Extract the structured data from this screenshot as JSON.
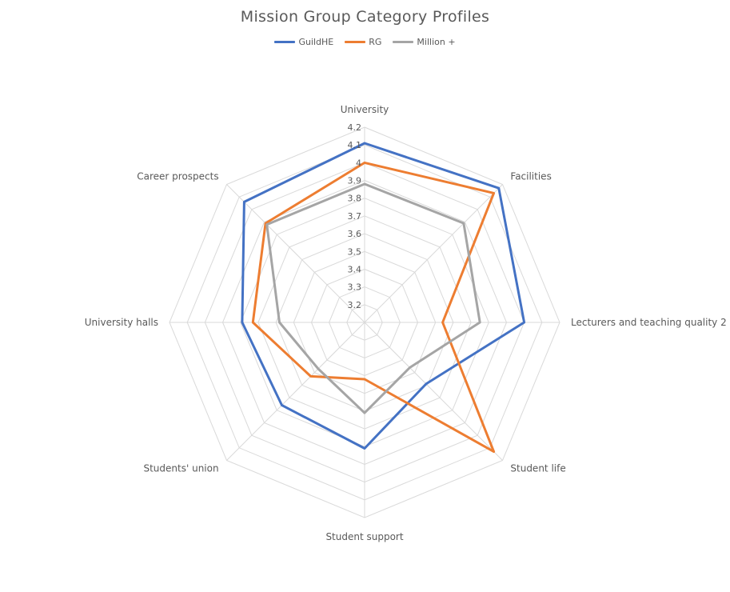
{
  "chart_data": {
    "type": "radar",
    "title": "Mission Group Category Profiles",
    "categories": [
      "University",
      "Facilities",
      "Lecturers and teaching quality 2",
      "Student life",
      "Student support",
      "Students' union",
      "University halls",
      "Career prospects"
    ],
    "scale": {
      "min": 3.1,
      "max": 4.2,
      "ticks": [
        3.2,
        3.3,
        3.4,
        3.5,
        3.6,
        3.7,
        3.8,
        3.9,
        4,
        4.1,
        4.2
      ],
      "tick_labels": [
        "3.2",
        "3.3",
        "3.4",
        "3.5",
        "3.6",
        "3.7",
        "3.8",
        "3.9",
        "4",
        "4.1",
        "4.2"
      ]
    },
    "series": [
      {
        "name": "GuildHE",
        "color": "#4472C4",
        "values": [
          4.11,
          4.17,
          4.0,
          3.59,
          3.81,
          3.76,
          3.79,
          4.06
        ]
      },
      {
        "name": "RG",
        "color": "#ED7D31",
        "values": [
          4.0,
          4.13,
          3.54,
          4.13,
          3.42,
          3.53,
          3.73,
          3.89
        ]
      },
      {
        "name": "Million +",
        "color": "#A5A5A5",
        "values": [
          3.88,
          3.89,
          3.75,
          3.46,
          3.61,
          3.47,
          3.58,
          3.88
        ]
      }
    ],
    "grid": true,
    "legend_position": "top"
  }
}
